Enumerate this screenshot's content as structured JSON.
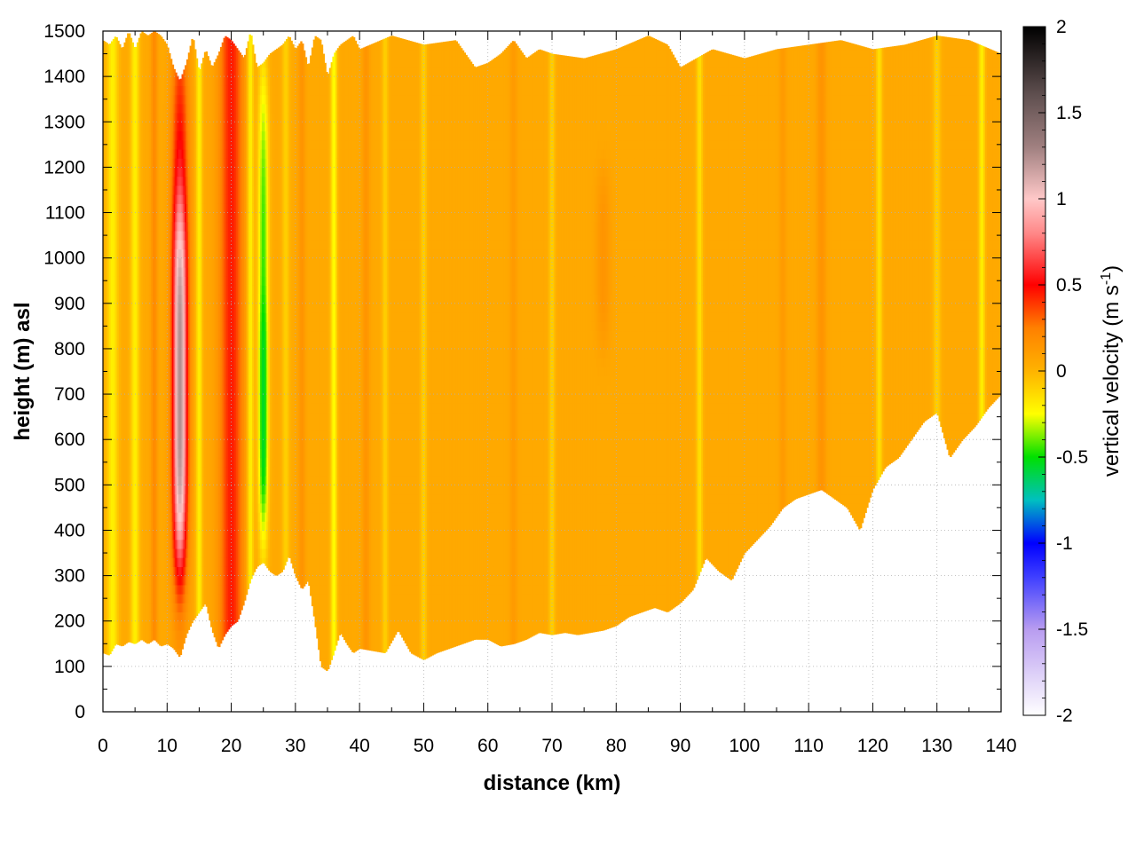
{
  "chart_data": {
    "type": "heatmap",
    "title": "",
    "xlabel": "distance (km)",
    "ylabel": "height (m) asl",
    "xlim": [
      0,
      140
    ],
    "ylim": [
      0,
      1500
    ],
    "x_ticks": [
      0,
      10,
      20,
      30,
      40,
      50,
      60,
      70,
      80,
      90,
      100,
      110,
      120,
      130,
      140
    ],
    "y_ticks": [
      0,
      100,
      200,
      300,
      400,
      500,
      600,
      700,
      800,
      900,
      1000,
      1100,
      1200,
      1300,
      1400,
      1500
    ],
    "grid": true,
    "colorbar": {
      "label": "vertical velocity (m s",
      "label_exponent": "-1",
      "label_suffix": ")",
      "range": [
        -2,
        2
      ],
      "ticks": [
        -2,
        -1.5,
        -1,
        -0.5,
        0,
        0.5,
        1,
        1.5,
        2
      ],
      "stops": [
        {
          "value": -2.0,
          "color": "#ffffff"
        },
        {
          "value": -1.5,
          "color": "#b89cf0"
        },
        {
          "value": -1.2,
          "color": "#4040ff"
        },
        {
          "value": -1.0,
          "color": "#0000ff"
        },
        {
          "value": -0.75,
          "color": "#00c0c0"
        },
        {
          "value": -0.5,
          "color": "#00e000"
        },
        {
          "value": -0.25,
          "color": "#ffff00"
        },
        {
          "value": -0.1,
          "color": "#ffd000"
        },
        {
          "value": 0.0,
          "color": "#ffb300"
        },
        {
          "value": 0.25,
          "color": "#ff8000"
        },
        {
          "value": 0.5,
          "color": "#ff0000"
        },
        {
          "value": 0.8,
          "color": "#ff8888"
        },
        {
          "value": 1.0,
          "color": "#ffc8c8"
        },
        {
          "value": 1.3,
          "color": "#a08080"
        },
        {
          "value": 1.6,
          "color": "#605050"
        },
        {
          "value": 2.0,
          "color": "#000000"
        }
      ]
    },
    "field": {
      "background_value": 0.05,
      "top_boundary_x": [
        0,
        1,
        2,
        3,
        4,
        5,
        6,
        7,
        8,
        9,
        10,
        11,
        12,
        13,
        14,
        15,
        16,
        17,
        18,
        19,
        20,
        21,
        22,
        23,
        24,
        25,
        26,
        27,
        28,
        29,
        30,
        31,
        32,
        33,
        34,
        35,
        36,
        37,
        38,
        39,
        40,
        45,
        50,
        55,
        58,
        60,
        62,
        64,
        66,
        68,
        70,
        75,
        80,
        85,
        88,
        90,
        95,
        100,
        105,
        110,
        115,
        120,
        125,
        130,
        135,
        140
      ],
      "top_boundary_y": [
        1480,
        1470,
        1490,
        1460,
        1500,
        1460,
        1500,
        1490,
        1500,
        1490,
        1470,
        1420,
        1390,
        1430,
        1490,
        1410,
        1460,
        1420,
        1450,
        1490,
        1480,
        1460,
        1440,
        1500,
        1420,
        1430,
        1450,
        1460,
        1470,
        1490,
        1460,
        1480,
        1420,
        1490,
        1480,
        1400,
        1450,
        1470,
        1480,
        1490,
        1460,
        1490,
        1470,
        1480,
        1420,
        1430,
        1450,
        1480,
        1440,
        1460,
        1450,
        1440,
        1460,
        1490,
        1470,
        1420,
        1460,
        1440,
        1460,
        1470,
        1480,
        1460,
        1470,
        1490,
        1480,
        1450
      ],
      "bottom_boundary_x": [
        0,
        1,
        2,
        3,
        4,
        5,
        6,
        7,
        8,
        9,
        10,
        11,
        12,
        13,
        14,
        15,
        16,
        17,
        18,
        19,
        20,
        21,
        22,
        23,
        24,
        25,
        26,
        27,
        28,
        29,
        30,
        31,
        32,
        33,
        34,
        35,
        36,
        37,
        38,
        39,
        40,
        42,
        44,
        46,
        48,
        50,
        52,
        54,
        56,
        58,
        60,
        62,
        64,
        66,
        68,
        70,
        72,
        74,
        76,
        78,
        80,
        82,
        84,
        86,
        88,
        90,
        92,
        94,
        96,
        98,
        100,
        102,
        104,
        106,
        108,
        110,
        112,
        114,
        116,
        118,
        120,
        122,
        124,
        126,
        128,
        130,
        132,
        134,
        136,
        138,
        140
      ],
      "bottom_boundary_y": [
        130,
        125,
        150,
        145,
        155,
        150,
        160,
        150,
        160,
        145,
        150,
        140,
        120,
        170,
        200,
        220,
        240,
        180,
        140,
        170,
        190,
        200,
        240,
        290,
        320,
        330,
        310,
        300,
        310,
        345,
        300,
        270,
        290,
        200,
        100,
        90,
        130,
        175,
        150,
        130,
        140,
        135,
        130,
        180,
        130,
        115,
        130,
        140,
        150,
        160,
        160,
        145,
        150,
        160,
        175,
        170,
        175,
        170,
        175,
        180,
        190,
        210,
        220,
        230,
        220,
        240,
        270,
        340,
        310,
        290,
        350,
        380,
        410,
        450,
        470,
        480,
        490,
        470,
        450,
        400,
        490,
        540,
        560,
        600,
        640,
        660,
        560,
        600,
        630,
        670,
        700
      ],
      "features": [
        {
          "x": 1.5,
          "width": 0.9,
          "value": -0.2
        },
        {
          "x": 5.0,
          "width": 0.7,
          "value": -0.2
        },
        {
          "x": 8.0,
          "width": 0.5,
          "value": 0.2
        },
        {
          "x": 12.0,
          "width": 1.3,
          "value": 0.55,
          "y_low": 250,
          "y_high": 1500
        },
        {
          "x": 12.0,
          "width": 0.9,
          "value": 1.25,
          "y_low": 350,
          "y_high": 1100
        },
        {
          "x": 15.0,
          "width": 0.5,
          "value": -0.2
        },
        {
          "x": 20.0,
          "width": 1.8,
          "value": 0.45
        },
        {
          "x": 23.0,
          "width": 0.5,
          "value": -0.2
        },
        {
          "x": 25.0,
          "width": 0.8,
          "value": -0.45,
          "y_low": 350,
          "y_high": 1420
        },
        {
          "x": 25.0,
          "width": 0.5,
          "value": -0.55,
          "y_low": 450,
          "y_high": 900
        },
        {
          "x": 28.5,
          "width": 0.6,
          "value": -0.1
        },
        {
          "x": 31.0,
          "width": 0.6,
          "value": 0.15
        },
        {
          "x": 36.0,
          "width": 0.5,
          "value": -0.25
        },
        {
          "x": 41.0,
          "width": 0.6,
          "value": 0.15
        },
        {
          "x": 44.0,
          "width": 0.5,
          "value": -0.1
        },
        {
          "x": 50.0,
          "width": 0.5,
          "value": -0.1
        },
        {
          "x": 64.0,
          "width": 0.6,
          "value": 0.12
        },
        {
          "x": 70.0,
          "width": 0.5,
          "value": -0.1
        },
        {
          "x": 78.0,
          "width": 1.2,
          "value": 0.15,
          "y_low": 800,
          "y_high": 1200
        },
        {
          "x": 93.0,
          "width": 0.5,
          "value": -0.15
        },
        {
          "x": 106.0,
          "width": 0.6,
          "value": 0.12
        },
        {
          "x": 112.0,
          "width": 0.8,
          "value": 0.15
        },
        {
          "x": 121.0,
          "width": 0.5,
          "value": -0.15
        },
        {
          "x": 130.0,
          "width": 0.6,
          "value": -0.1
        },
        {
          "x": 137.0,
          "width": 0.5,
          "value": -0.2
        }
      ]
    }
  }
}
